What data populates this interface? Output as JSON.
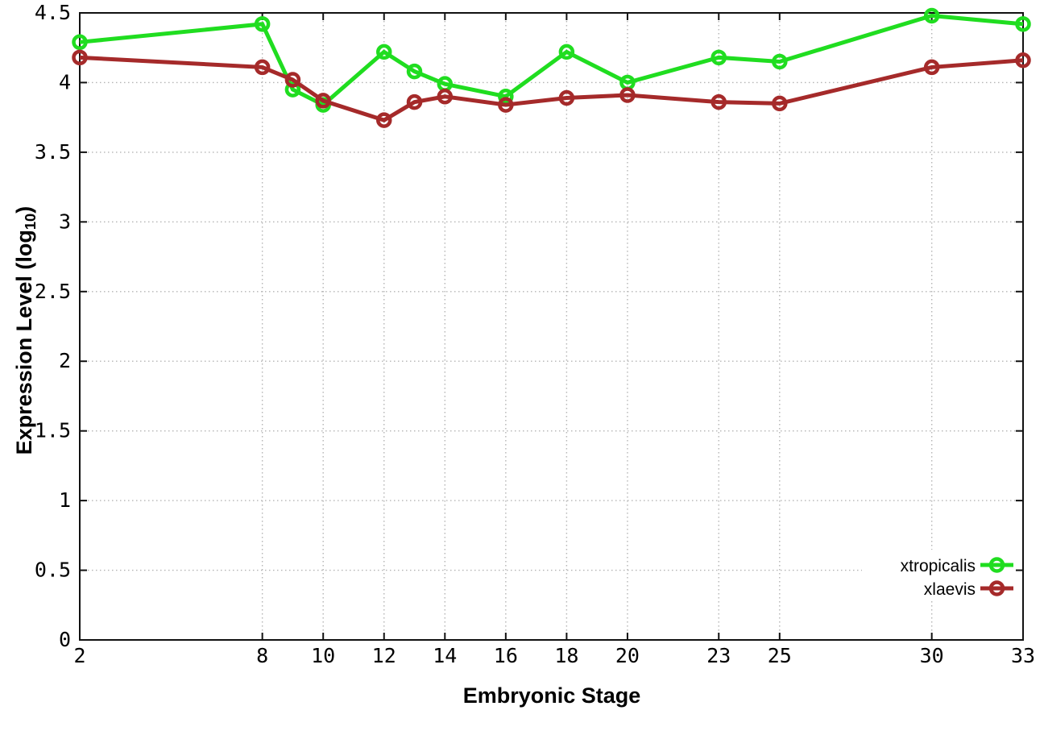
{
  "axes": {
    "x_title": "Embryonic Stage",
    "y_title_main": "Expression Level (log",
    "y_title_sub": "10",
    "y_title_end": ")"
  },
  "chart_data": {
    "type": "line",
    "title": "",
    "xlabel": "Embryonic Stage",
    "ylabel": "Expression Level (log10)",
    "x": [
      2,
      8,
      9,
      10,
      12,
      13,
      14,
      16,
      18,
      20,
      23,
      25,
      30,
      33
    ],
    "series": [
      {
        "name": "xtropicalis",
        "color": "#20dd20",
        "values": [
          4.29,
          4.42,
          3.95,
          3.84,
          4.22,
          4.08,
          3.99,
          3.9,
          4.22,
          4.0,
          4.18,
          4.15,
          4.48,
          4.42
        ]
      },
      {
        "name": "xlaevis",
        "color": "#a52a2a",
        "values": [
          4.18,
          4.11,
          4.02,
          3.87,
          3.73,
          3.86,
          3.9,
          3.84,
          3.89,
          3.91,
          3.86,
          3.85,
          4.11,
          4.16
        ]
      }
    ],
    "xticks": [
      "2",
      "8",
      "10",
      "12",
      "14",
      "16",
      "18",
      "20",
      "23",
      "25",
      "30",
      "33"
    ],
    "yticks": [
      "0",
      "0.5",
      "1",
      "1.5",
      "2",
      "2.5",
      "3",
      "3.5",
      "4",
      "4.5"
    ],
    "xlim": [
      2,
      33
    ],
    "ylim": [
      0,
      4.5
    ],
    "grid": true,
    "legend_position": "inside-bottom-right",
    "marker": "open-circle"
  },
  "legend": {
    "items": [
      {
        "label": "xtropicalis",
        "color": "#20dd20"
      },
      {
        "label": "xlaevis",
        "color": "#a52a2a"
      }
    ]
  },
  "style": {
    "background": "#ffffff",
    "grid_color": "#b4b4b4",
    "axis_color": "#111111",
    "text_color": "#000000"
  }
}
